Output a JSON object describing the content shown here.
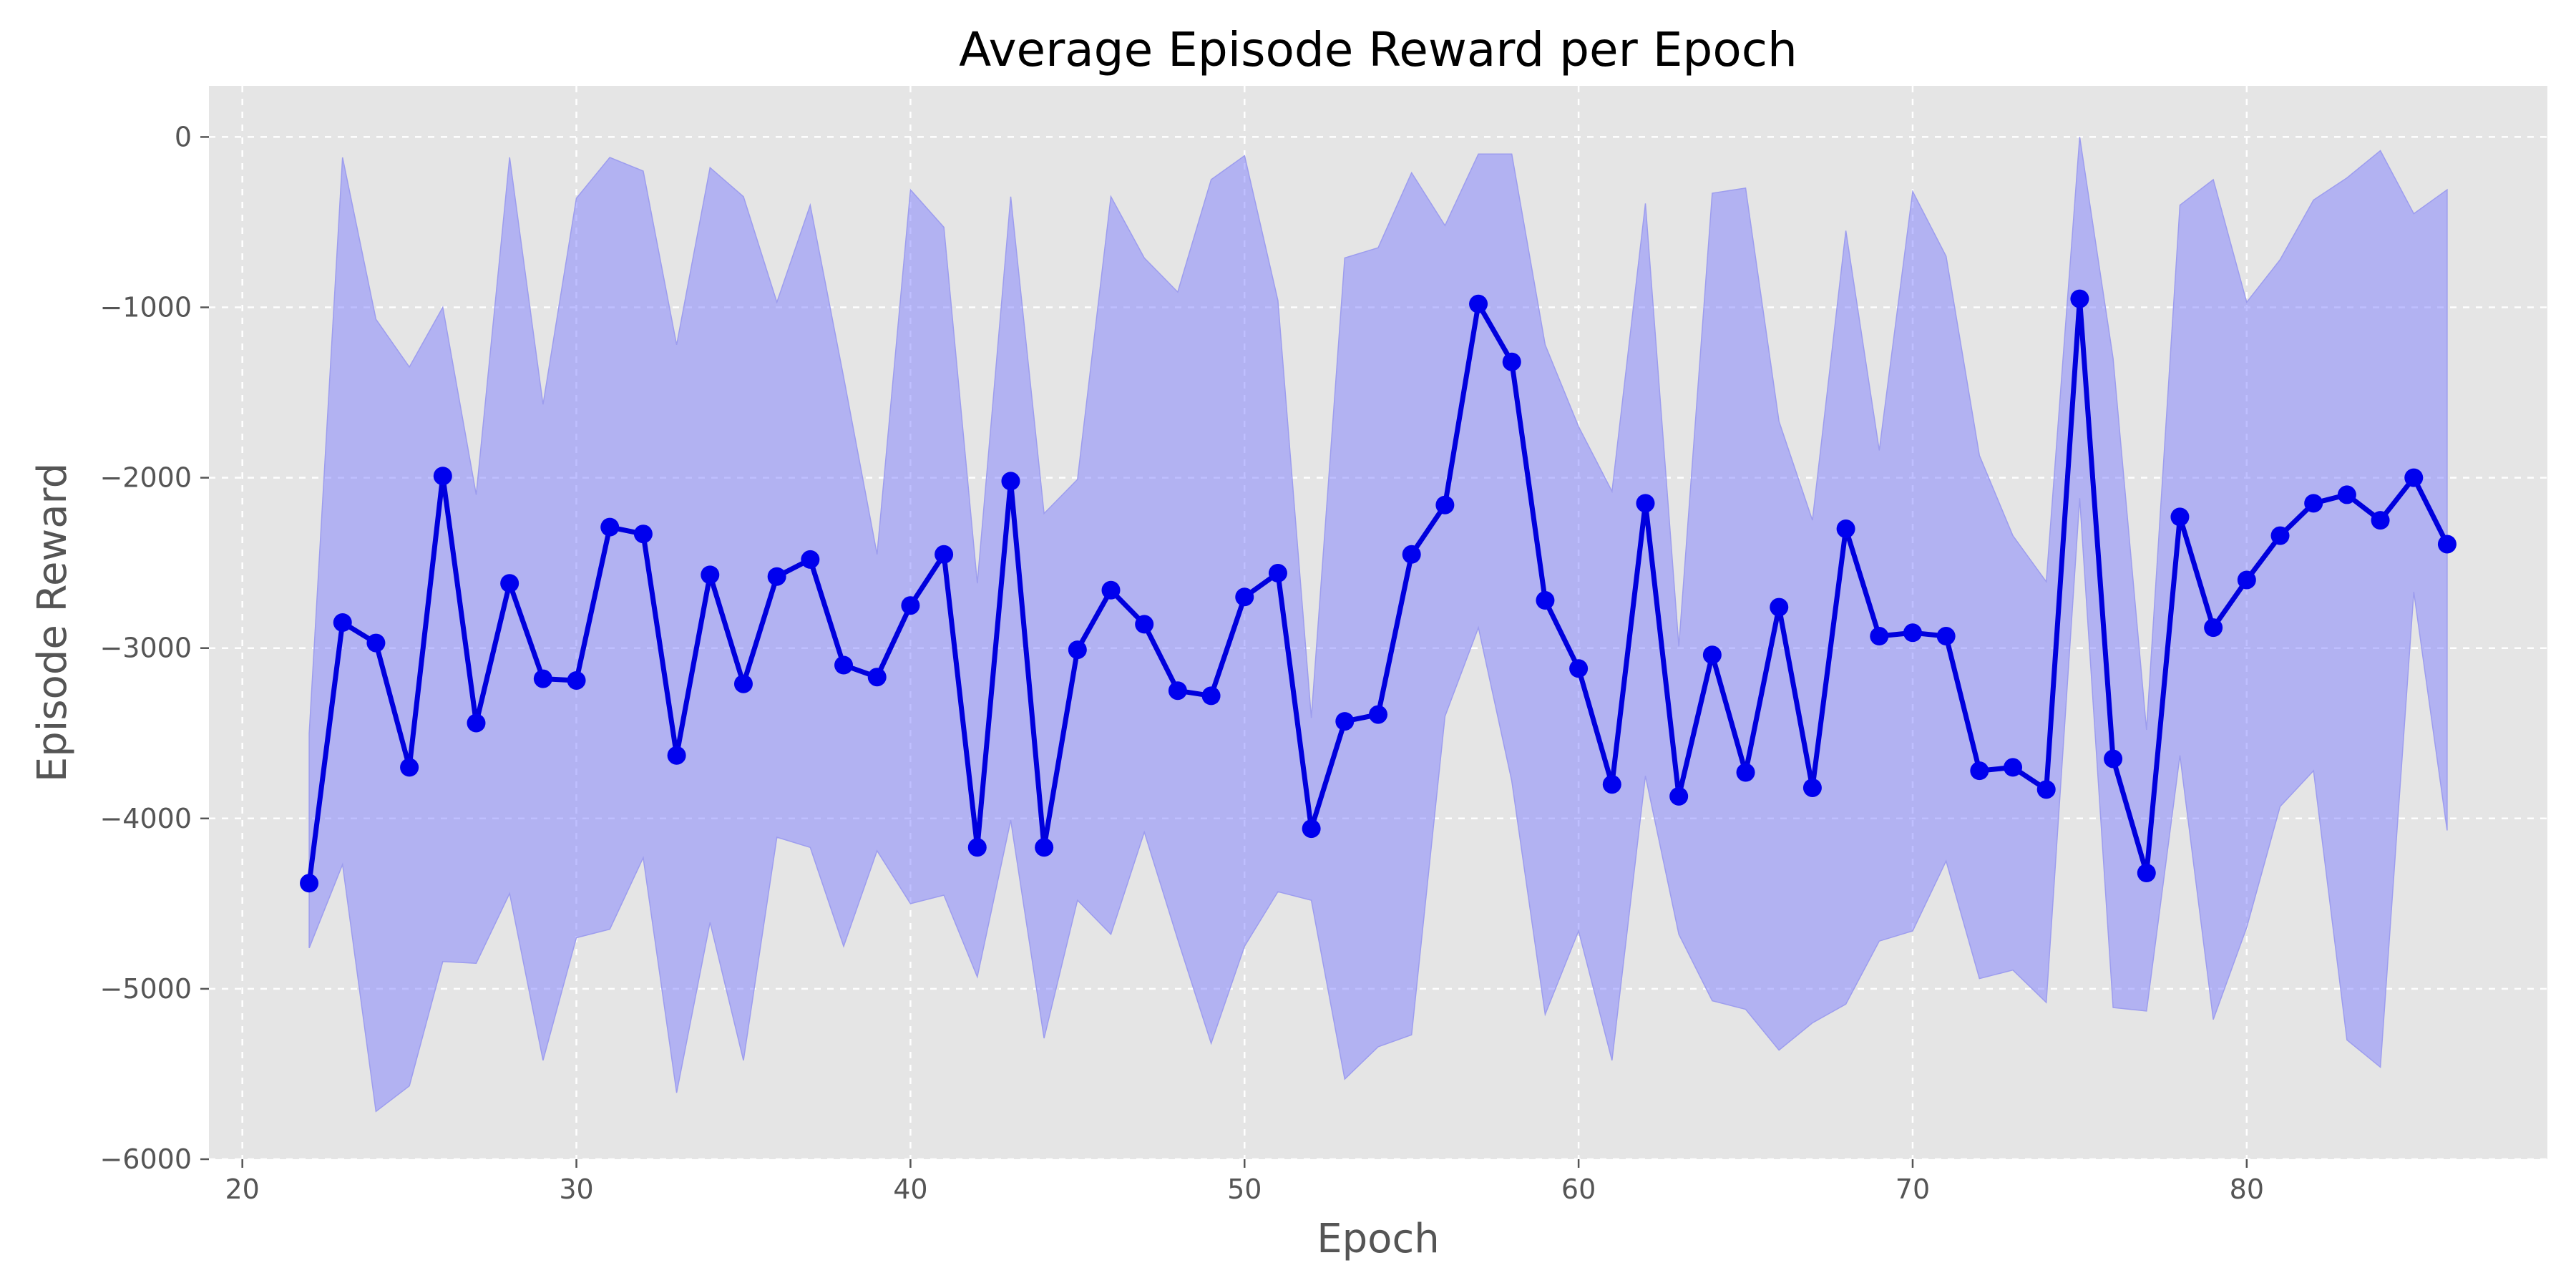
{
  "chart_data": {
    "type": "line",
    "title": "Average Episode Reward per Epoch",
    "xlabel": "Epoch",
    "ylabel": "Episode Reward",
    "xlim": [
      19,
      89
    ],
    "ylim": [
      -6000,
      300
    ],
    "xticks": [
      20,
      30,
      40,
      50,
      60,
      70,
      80
    ],
    "yticks": [
      0,
      -1000,
      -2000,
      -3000,
      -4000,
      -5000,
      -6000
    ],
    "xtick_labels": [
      "20",
      "30",
      "40",
      "50",
      "60",
      "70",
      "80"
    ],
    "ytick_labels": [
      "0",
      "−1000",
      "−2000",
      "−3000",
      "−4000",
      "−5000",
      "−6000"
    ],
    "grid": true,
    "colors": {
      "plot_bg": "#e5e5e5",
      "line": "#0000dd",
      "marker": "#0000ee",
      "band_fill": "#8080ff",
      "band_edge": "#9d9dee"
    },
    "x": [
      22,
      23,
      24,
      25,
      26,
      27,
      28,
      29,
      30,
      31,
      32,
      33,
      34,
      35,
      36,
      37,
      38,
      39,
      40,
      41,
      42,
      43,
      44,
      45,
      46,
      47,
      48,
      49,
      50,
      51,
      52,
      53,
      54,
      55,
      56,
      57,
      58,
      59,
      60,
      61,
      62,
      63,
      64,
      65,
      66,
      67,
      68,
      69,
      70,
      71,
      72,
      73,
      74,
      75,
      76,
      77,
      78,
      79,
      80,
      81,
      82,
      83,
      84,
      85,
      86
    ],
    "series": [
      {
        "name": "mean",
        "values": [
          -4380,
          -2850,
          -2970,
          -3700,
          -1990,
          -3440,
          -2620,
          -3180,
          -3190,
          -2290,
          -2330,
          -3630,
          -2570,
          -3210,
          -2580,
          -2480,
          -3100,
          -3170,
          -2750,
          -2450,
          -4170,
          -2020,
          -4170,
          -3010,
          -2660,
          -2860,
          -3250,
          -3280,
          -2700,
          -2560,
          -4060,
          -3430,
          -3390,
          -2450,
          -2160,
          -980,
          -1320,
          -2720,
          -3120,
          -3800,
          -2150,
          -3870,
          -3040,
          -3730,
          -2760,
          -3820,
          -2300,
          -2930,
          -2910,
          -2930,
          -3720,
          -3700,
          -3830,
          -950,
          -3650,
          -4320,
          -2230,
          -2880,
          -2600,
          -2340,
          -2150,
          -2100,
          -2250,
          -2000,
          -2390
        ]
      },
      {
        "name": "upper",
        "values": [
          -3500,
          -120,
          -1070,
          -1350,
          -1000,
          -2100,
          -120,
          -1570,
          -360,
          -120,
          -200,
          -1220,
          -180,
          -350,
          -970,
          -400,
          -1410,
          -2450,
          -310,
          -530,
          -2620,
          -350,
          -2210,
          -2010,
          -350,
          -710,
          -910,
          -250,
          -110,
          -960,
          -3410,
          -710,
          -650,
          -210,
          -520,
          -100,
          -100,
          -1220,
          -1700,
          -2080,
          -390,
          -2990,
          -330,
          -300,
          -1670,
          -2250,
          -550,
          -1840,
          -320,
          -700,
          -1870,
          -2340,
          -2610,
          0,
          -1300,
          -3480,
          -400,
          -250,
          -970,
          -720,
          -370,
          -240,
          -80,
          -450,
          -310
        ]
      },
      {
        "name": "lower",
        "values": [
          -4760,
          -4270,
          -5720,
          -5570,
          -4840,
          -4850,
          -4440,
          -5420,
          -4700,
          -4650,
          -4230,
          -5610,
          -4610,
          -5420,
          -4110,
          -4170,
          -4750,
          -4190,
          -4500,
          -4450,
          -4930,
          -4010,
          -5290,
          -4480,
          -4680,
          -4080,
          -4710,
          -5320,
          -4750,
          -4430,
          -4480,
          -5530,
          -5340,
          -5270,
          -3400,
          -2880,
          -3780,
          -5150,
          -4660,
          -5420,
          -3750,
          -4680,
          -5070,
          -5120,
          -5360,
          -5200,
          -5090,
          -4720,
          -4660,
          -4250,
          -4940,
          -4890,
          -5080,
          -2120,
          -5110,
          -5130,
          -3630,
          -5180,
          -4640,
          -3930,
          -3720,
          -5300,
          -5460,
          -2670,
          -4070
        ]
      }
    ]
  }
}
